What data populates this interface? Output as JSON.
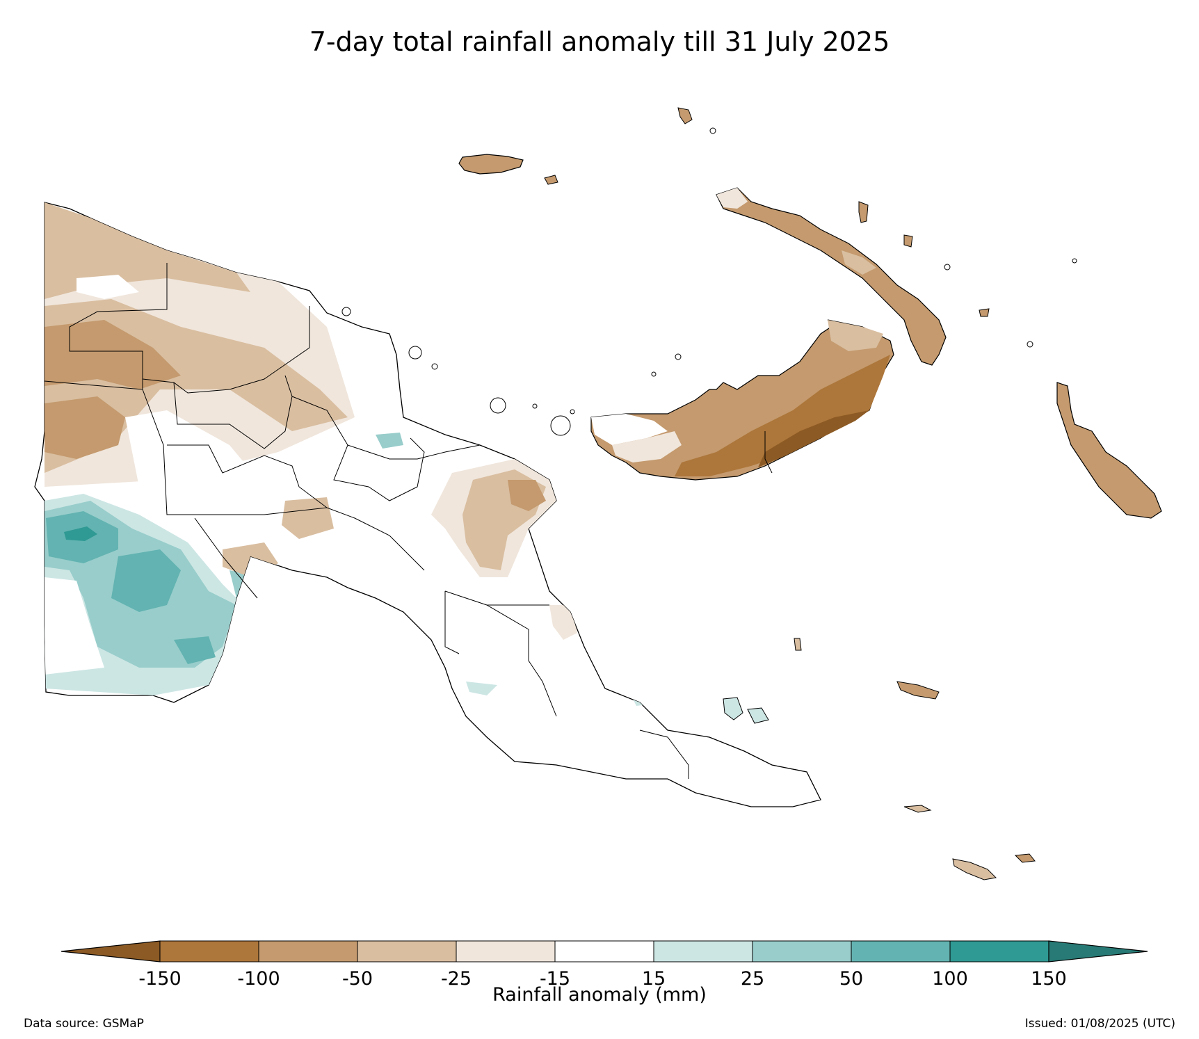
{
  "title": "7-day total rainfall anomaly till 31 July 2025",
  "colorbar": {
    "label": "Rainfall anomaly (mm)",
    "ticks": [
      "-150",
      "-100",
      "-50",
      "-25",
      "-15",
      "15",
      "25",
      "50",
      "100",
      "150"
    ],
    "bins": [
      {
        "range": "< -150",
        "color": "#8c5a24"
      },
      {
        "range": "-150 to -100",
        "color": "#ad763a"
      },
      {
        "range": "-100 to -50",
        "color": "#c49a6e"
      },
      {
        "range": "-50 to -25",
        "color": "#d9bea0"
      },
      {
        "range": "-25 to -15",
        "color": "#f0e6dc"
      },
      {
        "range": "-15 to 15",
        "color": "#ffffff"
      },
      {
        "range": "15 to 25",
        "color": "#cce6e4"
      },
      {
        "range": "25 to 50",
        "color": "#98cdcb"
      },
      {
        "range": "50 to 100",
        "color": "#62b3b1"
      },
      {
        "range": "100 to 150",
        "color": "#2f9993"
      },
      {
        "range": "> 150",
        "color": "#277a75"
      }
    ]
  },
  "footer": {
    "data_source": "Data source: GSMaP",
    "issued": "Issued: 01/08/2025 (UTC)"
  }
}
